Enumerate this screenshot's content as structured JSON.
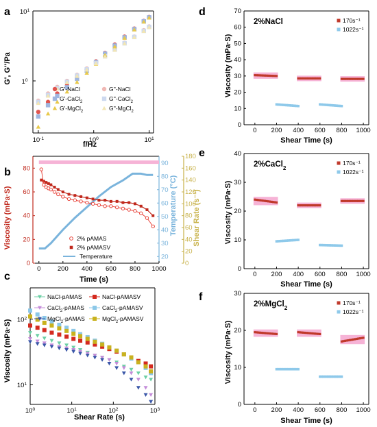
{
  "colors": {
    "nacl": "#e0554f",
    "cacl2": "#9fb6e0",
    "mgcl2": "#e8c94a",
    "nacl_g2": "#f0b8b4",
    "cacl2_g2": "#cdd9ef",
    "mgcl2_g2": "#f2e6b4",
    "pamas": "#e8453c",
    "pamasv": "#c0281c",
    "temp": "#7ab4dc",
    "shear_axis": "#c8b24a",
    "r170": "#c0392b",
    "r1022": "#8ec9ea",
    "band": "#f6b3d6",
    "c_nacl_pamas": "#6ccfa5",
    "c_nacl_pamasv": "#d42a1f",
    "c_cacl2_pamas": "#c48cd9",
    "c_cacl2_pamasv": "#8cc8e8",
    "c_mgcl2_pamas": "#3a57a8",
    "c_mgcl2_pamasv": "#c9b21e"
  },
  "panels": {
    "a": {
      "label": "a",
      "xlabel": "f/Hz",
      "ylabel": "G', G''/Pa",
      "yticks": [
        "10",
        "1"
      ],
      "xticks": [
        "10",
        "10",
        "10"
      ],
      "xexp": [
        "-1",
        "0",
        "1"
      ],
      "yexp": [
        "1",
        "0"
      ],
      "legend": [
        "G'-NaCl",
        "G''-NaCl",
        "G'-CaCl2",
        "G''-CaCl2",
        "G'-MgCl2",
        "G''-MgCl2"
      ]
    },
    "b": {
      "label": "b",
      "xlabel": "Time (s)",
      "ylabel_left": "Viscosity (mPa·S)",
      "ylabel_mid": "Temperature (°C)",
      "ylabel_right": "Shear Rate (s⁻¹)",
      "xticks": [
        "0",
        "200",
        "400",
        "600",
        "800",
        "1000"
      ],
      "yticks_left": [
        "0",
        "20",
        "40",
        "60",
        "80"
      ],
      "yticks_mid": [
        "20",
        "30",
        "40",
        "50",
        "60",
        "70",
        "80",
        "90"
      ],
      "yticks_right": [
        "0",
        "20",
        "40",
        "60",
        "80",
        "100",
        "120",
        "140",
        "160",
        "180"
      ],
      "legend": [
        "2% pAMAS",
        "2% pAMASV",
        "Temperature"
      ]
    },
    "c": {
      "label": "c",
      "xlabel": "Shear Rate (s)",
      "ylabel": "Viscosity (mPa·S)",
      "xexp": [
        "0",
        "1",
        "2",
        "3"
      ],
      "yexp": [
        "2",
        "1"
      ],
      "legend": [
        "NaCl-pAMAS",
        "NaCl-pAMASV",
        "CaCl2-pAMAS",
        "CaCl2-pAMASV",
        "MgCl2-pAMAS",
        "MgCl2-pAMASV"
      ]
    },
    "d": {
      "label": "d",
      "title": "2%NaCl",
      "xlabel": "Shear Time (s)",
      "ylabel": "Viscosity (mPa·S)",
      "yticks": [
        "0",
        "10",
        "20",
        "30",
        "40",
        "50",
        "60",
        "70"
      ],
      "xticks": [
        "0",
        "200",
        "400",
        "600",
        "800",
        "1000"
      ],
      "legend": [
        "170s⁻¹",
        "1022s⁻¹"
      ]
    },
    "e": {
      "label": "e",
      "title": "2%CaCl2",
      "xlabel": "Shear Time (s)",
      "ylabel": "Viscosity (mPa·S)",
      "yticks": [
        "0",
        "10",
        "20",
        "30",
        "40"
      ],
      "xticks": [
        "0",
        "200",
        "400",
        "600",
        "800",
        "1000"
      ],
      "legend": [
        "170s⁻¹",
        "1022s⁻¹"
      ]
    },
    "f": {
      "label": "f",
      "title": "2%MgCl2",
      "xlabel": "Shear Time (s)",
      "ylabel": "Viscosity (mPa·S)",
      "yticks": [
        "0",
        "10",
        "20",
        "30"
      ],
      "xticks": [
        "0",
        "200",
        "400",
        "600",
        "800",
        "1000"
      ],
      "legend": [
        "170s⁻¹",
        "1022s⁻¹"
      ]
    }
  },
  "chart_data": [
    {
      "panel": "a",
      "type": "scatter",
      "xscale": "log",
      "yscale": "log",
      "xlim": [
        0.08,
        12
      ],
      "ylim": [
        0.18,
        10
      ],
      "xlabel": "f/Hz",
      "ylabel": "G', G''/Pa",
      "series": [
        {
          "name": "G'-NaCl",
          "x": [
            0.1,
            0.15,
            0.22,
            0.33,
            0.5,
            0.75,
            1.1,
            1.6,
            2.4,
            3.6,
            5.4,
            8,
            10
          ],
          "y": [
            0.36,
            0.5,
            0.66,
            0.86,
            1.12,
            1.45,
            1.9,
            2.5,
            3.3,
            4.3,
            5.6,
            7.2,
            8.2
          ]
        },
        {
          "name": "G''-NaCl",
          "x": [
            0.1,
            0.15,
            0.22,
            0.33,
            0.5,
            0.75,
            1.1,
            1.6,
            2.4,
            3.6,
            5.4,
            8,
            10
          ],
          "y": [
            0.52,
            0.66,
            0.82,
            1.0,
            1.22,
            1.5,
            1.85,
            2.3,
            2.85,
            3.5,
            4.3,
            5.3,
            6.0
          ]
        },
        {
          "name": "G'-CaCl2",
          "x": [
            0.1,
            0.15,
            0.22,
            0.33,
            0.5,
            0.75,
            1.1,
            1.6,
            2.4,
            3.6,
            5.4,
            8,
            10
          ],
          "y": [
            0.31,
            0.45,
            0.61,
            0.81,
            1.07,
            1.4,
            1.85,
            2.45,
            3.2,
            4.2,
            5.5,
            7.1,
            8.1
          ]
        },
        {
          "name": "G''-CaCl2",
          "x": [
            0.1,
            0.15,
            0.22,
            0.33,
            0.5,
            0.75,
            1.1,
            1.6,
            2.4,
            3.6,
            5.4,
            8,
            10
          ],
          "y": [
            0.5,
            0.63,
            0.79,
            0.97,
            1.19,
            1.46,
            1.8,
            2.25,
            2.8,
            3.45,
            4.25,
            5.2,
            5.9
          ]
        },
        {
          "name": "G'-MgCl2",
          "x": [
            0.1,
            0.15,
            0.22,
            0.33,
            0.5,
            0.75,
            1.1,
            1.6,
            2.4,
            3.6,
            5.4,
            8,
            10
          ],
          "y": [
            0.22,
            0.34,
            0.5,
            0.7,
            0.96,
            1.3,
            1.75,
            2.35,
            3.1,
            4.1,
            5.4,
            7.0,
            8.0
          ]
        },
        {
          "name": "G''-MgCl2",
          "x": [
            0.1,
            0.15,
            0.22,
            0.33,
            0.5,
            0.75,
            1.1,
            1.6,
            2.4,
            3.6,
            5.4,
            8,
            10
          ],
          "y": [
            0.48,
            0.61,
            0.77,
            0.95,
            1.17,
            1.44,
            1.78,
            2.22,
            2.77,
            3.42,
            4.2,
            5.15,
            5.85
          ]
        }
      ]
    },
    {
      "panel": "b",
      "type": "line",
      "xlim": [
        -50,
        1000
      ],
      "ylim": [
        0,
        90
      ],
      "y2lim": [
        15,
        95
      ],
      "y3lim": [
        0,
        180
      ],
      "xlabel": "Time (s)",
      "ylabel": "Viscosity (mPa·S)",
      "y2label": "Temperature (°C)",
      "y3label": "Shear Rate (s⁻¹)",
      "series": [
        {
          "name": "2% pAMAS",
          "axis": "viscosity",
          "x": [
            20,
            40,
            60,
            80,
            100,
            130,
            160,
            200,
            250,
            300,
            350,
            400,
            450,
            500,
            550,
            600,
            650,
            700,
            750,
            800,
            850,
            900,
            950
          ],
          "y": [
            79,
            66,
            64,
            63,
            62,
            60,
            58,
            56,
            54,
            53,
            52,
            51,
            50,
            49,
            48,
            48,
            47,
            46,
            45,
            44,
            42,
            38,
            31
          ]
        },
        {
          "name": "2% pAMASV",
          "axis": "viscosity",
          "x": [
            20,
            40,
            60,
            80,
            100,
            130,
            160,
            200,
            250,
            300,
            350,
            400,
            450,
            500,
            550,
            600,
            650,
            700,
            750,
            800,
            850,
            900,
            950
          ],
          "y": [
            70,
            69,
            68,
            67,
            66,
            64,
            62,
            60,
            58,
            57,
            56,
            55,
            54,
            53,
            53,
            52,
            52,
            51,
            51,
            50,
            48,
            45,
            40
          ]
        },
        {
          "name": "Temperature",
          "axis": "temperature",
          "x": [
            0,
            50,
            100,
            150,
            200,
            300,
            400,
            500,
            600,
            700,
            780,
            800,
            850,
            900,
            950
          ],
          "y": [
            26,
            26,
            30,
            35,
            40,
            49,
            57,
            65,
            72,
            77,
            82,
            82,
            82,
            81,
            81
          ]
        },
        {
          "name": "shear rate",
          "axis": "shear",
          "x": [
            0,
            1000
          ],
          "y": [
            170,
            170
          ]
        }
      ]
    },
    {
      "panel": "c",
      "type": "scatter",
      "xscale": "log",
      "yscale": "log",
      "xlim": [
        1,
        1000
      ],
      "ylim": [
        5,
        300
      ],
      "xlabel": "Shear Rate (s)",
      "ylabel": "Viscosity (mPa·S)",
      "series": [
        {
          "name": "NaCl-pAMAS",
          "x": [
            1,
            1.5,
            2.2,
            3.3,
            5,
            7.5,
            11,
            16,
            24,
            36,
            54,
            80,
            120,
            180,
            270,
            400,
            600,
            800
          ],
          "y": [
            62,
            56,
            51,
            47,
            43,
            40,
            37,
            34,
            31,
            28,
            26,
            24,
            22,
            19,
            17,
            15,
            13,
            12
          ]
        },
        {
          "name": "NaCl-pAMASV",
          "x": [
            1,
            1.5,
            2.2,
            3.3,
            5,
            7.5,
            11,
            16,
            24,
            36,
            54,
            80,
            120,
            180,
            270,
            400,
            600,
            800
          ],
          "y": [
            80,
            74,
            68,
            62,
            58,
            54,
            50,
            47,
            44,
            41,
            38,
            35,
            32,
            29,
            26,
            23,
            21,
            19
          ]
        },
        {
          "name": "CaCl2-pAMAS",
          "x": [
            1,
            1.5,
            2.2,
            3.3,
            5,
            7.5,
            11,
            16,
            24,
            36,
            54,
            80,
            120,
            180,
            270,
            400,
            600,
            800
          ],
          "y": [
            50,
            46,
            43,
            40,
            38,
            36,
            34,
            32,
            30,
            28,
            26,
            24,
            21,
            18,
            15,
            12,
            9,
            7
          ]
        },
        {
          "name": "CaCl2-pAMASV",
          "x": [
            1,
            1.5,
            2.2,
            3.3,
            5,
            7.5,
            11,
            16,
            24,
            36,
            54,
            80,
            120,
            180,
            270,
            400,
            600,
            800
          ],
          "y": [
            135,
            118,
            104,
            92,
            82,
            74,
            66,
            59,
            53,
            47,
            42,
            37,
            33,
            29,
            25,
            22,
            18,
            15
          ]
        },
        {
          "name": "MgCl2-pAMAS",
          "x": [
            1,
            1.5,
            2.2,
            3.3,
            5,
            7.5,
            11,
            16,
            24,
            36,
            54,
            80,
            120,
            180,
            270,
            400,
            600,
            800
          ],
          "y": [
            45,
            42,
            40,
            38,
            36,
            34,
            32,
            30,
            28,
            26,
            24,
            21,
            18,
            15,
            12,
            9,
            7,
            5.5
          ]
        },
        {
          "name": "MgCl2-pAMASV",
          "x": [
            1,
            1.5,
            2.2,
            3.3,
            5,
            7.5,
            11,
            16,
            24,
            36,
            54,
            80,
            120,
            180,
            270,
            400,
            600,
            800
          ],
          "y": [
            110,
            98,
            88,
            80,
            72,
            66,
            60,
            55,
            50,
            45,
            41,
            37,
            33,
            29,
            26,
            22,
            19,
            16
          ]
        }
      ]
    },
    {
      "panel": "d",
      "type": "scatter",
      "title": "2%NaCl",
      "xlim": [
        -100,
        1050
      ],
      "ylim": [
        0,
        70
      ],
      "xlabel": "Shear Time (s)",
      "ylabel": "Viscosity (mPa·S)",
      "series": [
        {
          "name": "170s⁻¹",
          "segments": [
            {
              "x0": 0,
              "x1": 200,
              "y0": 30.5,
              "y1": 30
            },
            {
              "x0": 400,
              "x1": 600,
              "y0": 28.5,
              "y1": 28.5
            },
            {
              "x0": 800,
              "x1": 1000,
              "y0": 28.2,
              "y1": 28.2
            }
          ]
        },
        {
          "name": "1022s⁻¹",
          "segments": [
            {
              "x0": 200,
              "x1": 400,
              "y0": 12.5,
              "y1": 11.5
            },
            {
              "x0": 600,
              "x1": 800,
              "y0": 12.5,
              "y1": 11.5
            }
          ]
        }
      ]
    },
    {
      "panel": "e",
      "type": "scatter",
      "title": "2%CaCl2",
      "xlim": [
        -100,
        1050
      ],
      "ylim": [
        0,
        40
      ],
      "xlabel": "Shear Time (s)",
      "ylabel": "Viscosity (mPa·S)",
      "series": [
        {
          "name": "170s⁻¹",
          "segments": [
            {
              "x0": 0,
              "x1": 200,
              "y0": 24,
              "y1": 23
            },
            {
              "x0": 400,
              "x1": 600,
              "y0": 22,
              "y1": 22
            },
            {
              "x0": 800,
              "x1": 1000,
              "y0": 23.5,
              "y1": 23.5
            }
          ]
        },
        {
          "name": "1022s⁻¹",
          "segments": [
            {
              "x0": 200,
              "x1": 400,
              "y0": 9.5,
              "y1": 10
            },
            {
              "x0": 600,
              "x1": 800,
              "y0": 8.2,
              "y1": 8
            }
          ]
        }
      ]
    },
    {
      "panel": "f",
      "type": "scatter",
      "title": "2%MgCl2",
      "xlim": [
        -100,
        1050
      ],
      "ylim": [
        0,
        30
      ],
      "xlabel": "Shear Time (s)",
      "ylabel": "Viscosity (mPa·S)",
      "series": [
        {
          "name": "170s⁻¹",
          "segments": [
            {
              "x0": 0,
              "x1": 200,
              "y0": 19.5,
              "y1": 19
            },
            {
              "x0": 400,
              "x1": 600,
              "y0": 19.5,
              "y1": 19
            },
            {
              "x0": 800,
              "x1": 1000,
              "y0": 17,
              "y1": 18
            }
          ]
        },
        {
          "name": "1022s⁻¹",
          "segments": [
            {
              "x0": 200,
              "x1": 400,
              "y0": 9.5,
              "y1": 9.5
            },
            {
              "x0": 600,
              "x1": 800,
              "y0": 7.5,
              "y1": 7.5
            }
          ]
        }
      ]
    }
  ]
}
